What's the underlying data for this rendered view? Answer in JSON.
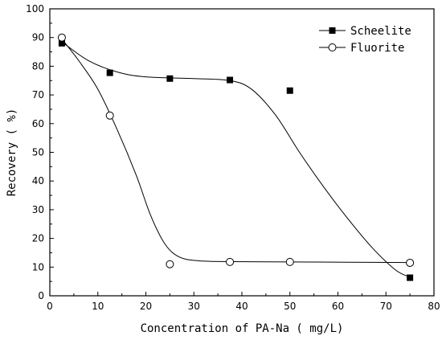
{
  "chart_data": {
    "type": "scatter",
    "title": "",
    "xlabel": "Concentration of PA-Na ( mg/L)",
    "ylabel": "Recovery ( %)",
    "xlim": [
      0,
      80
    ],
    "ylim": [
      0,
      100
    ],
    "xticks": [
      0,
      10,
      20,
      30,
      40,
      50,
      60,
      70,
      80
    ],
    "yticks": [
      0,
      10,
      20,
      30,
      40,
      50,
      60,
      70,
      80,
      90,
      100
    ],
    "grid": false,
    "legend_position": "top-right",
    "series": [
      {
        "name": "Scheelite",
        "marker": "filled-square",
        "color": "#000000",
        "x": [
          2.5,
          12.5,
          25,
          37.5,
          50,
          75
        ],
        "y": [
          88,
          77.7,
          75.7,
          75.2,
          71.5,
          6.3
        ],
        "trend": [
          [
            2.5,
            88.5
          ],
          [
            8,
            82
          ],
          [
            14,
            78
          ],
          [
            20,
            76.3
          ],
          [
            30,
            75.7
          ],
          [
            37.5,
            75
          ],
          [
            42,
            72
          ],
          [
            47,
            63
          ],
          [
            52,
            50
          ],
          [
            57,
            38
          ],
          [
            62,
            27
          ],
          [
            67,
            17
          ],
          [
            72,
            9
          ],
          [
            75,
            6.5
          ]
        ]
      },
      {
        "name": "Fluorite",
        "marker": "open-circle",
        "color": "#000000",
        "x": [
          2.5,
          12.5,
          25,
          37.5,
          50,
          75
        ],
        "y": [
          90,
          62.8,
          11,
          11.8,
          11.8,
          11.5
        ],
        "trend": [
          [
            2.5,
            89.5
          ],
          [
            6,
            82
          ],
          [
            10,
            72
          ],
          [
            14,
            58
          ],
          [
            18,
            42
          ],
          [
            21,
            28
          ],
          [
            24,
            18
          ],
          [
            27,
            13.5
          ],
          [
            31,
            12.2
          ],
          [
            37.5,
            11.9
          ],
          [
            50,
            11.8
          ],
          [
            62,
            11.7
          ],
          [
            75,
            11.6
          ]
        ]
      }
    ]
  }
}
